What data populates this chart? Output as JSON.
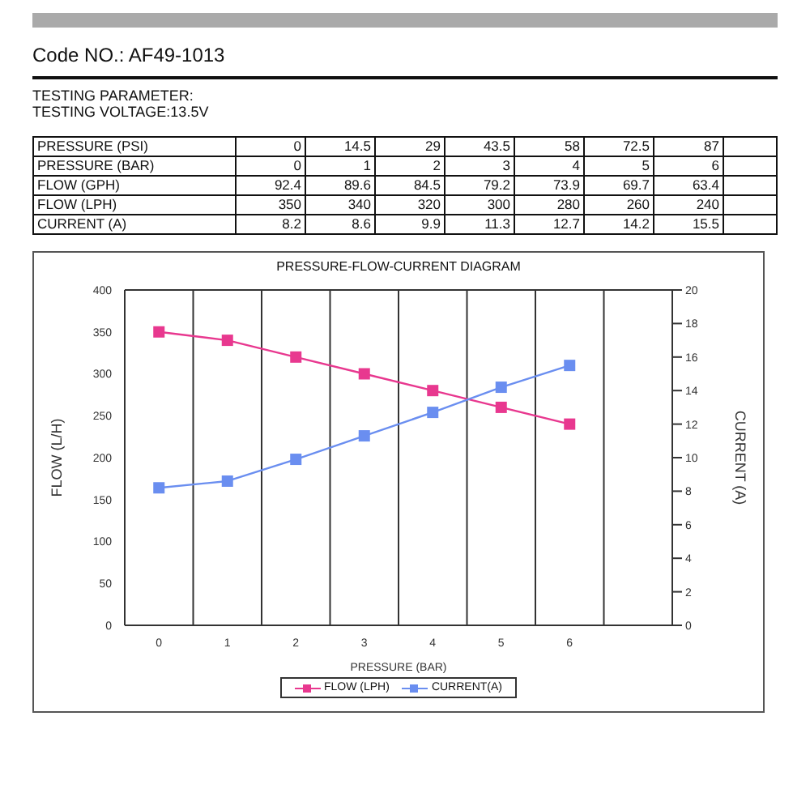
{
  "chart_data": {
    "type": "line",
    "title": "PRESSURE-FLOW-CURRENT DIAGRAM",
    "xlabel": "PRESSURE (BAR)",
    "ylabel": "FLOW (L/H)",
    "y2label": "CURRENT (A)",
    "categories": [
      "0",
      "1",
      "2",
      "3",
      "4",
      "5",
      "6",
      null
    ],
    "series": [
      {
        "name": "FLOW (LPH)",
        "color": "#e8388f",
        "values": [
          350,
          340,
          320,
          300,
          280,
          260,
          240,
          null
        ]
      },
      {
        "name": "CURRENT(A)",
        "color": "#6a8ef0",
        "axis": "y2",
        "values": [
          8.2,
          8.6,
          9.9,
          11.3,
          12.7,
          14.2,
          15.5,
          null
        ]
      }
    ],
    "ylim": [
      0,
      400
    ],
    "yticks": [
      0,
      50,
      100,
      150,
      200,
      250,
      300,
      350,
      400
    ],
    "y2lim": [
      0,
      20
    ],
    "y2ticks": [
      0,
      2,
      4,
      6,
      8,
      10,
      12,
      14,
      16,
      18,
      20
    ],
    "grid": true,
    "legend": "bottom",
    "marker": "square",
    "line_style": "solid",
    "annotations": [
      "Code NO.: AF49-1013",
      "TESTING PARAMETER:",
      "TESTING VOLTAGE:13.5V",
      "PRESSURE (PSI)",
      "0",
      "14.5",
      "29",
      "43.5",
      "58",
      "72.5",
      "87",
      "PRESSURE (BAR)",
      "0",
      "1",
      "2",
      "3",
      "4",
      "5",
      "6",
      "FLOW (GPH)",
      "92.4",
      "89.6",
      "84.5",
      "79.2",
      "73.9",
      "69.7",
      "63.4",
      "FLOW (LPH)",
      "350",
      "340",
      "320",
      "300",
      "280",
      "260",
      "240",
      "CURRENT (A)",
      "8.2",
      "8.6",
      "9.9",
      "11.3",
      "12.7",
      "14.2",
      "15.5"
    ]
  }
}
